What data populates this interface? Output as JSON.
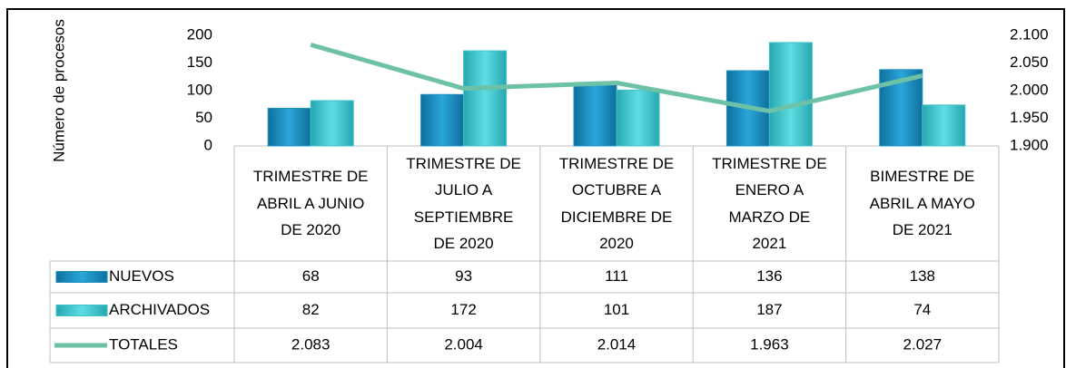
{
  "chart_data": {
    "type": "bar_line_table",
    "y_label": "Número de procesos",
    "categories": [
      "TRIMESTRE DE\nABRIL A JUNIO\nDE 2020",
      "TRIMESTRE DE\nJULIO A\nSEPTIEMBRE\nDE 2020",
      "TRIMESTRE DE\nOCTUBRE A\nDICIEMBRE DE\n2020",
      "TRIMESTRE DE\nENERO A\nMARZO DE\n2021",
      "BIMESTRE DE\nABRIL A MAYO\nDE 2021"
    ],
    "series": [
      {
        "name": "NUEVOS",
        "type": "bar",
        "color": "#1b8fc2",
        "values": [
          68,
          93,
          111,
          136,
          138
        ]
      },
      {
        "name": "ARCHIVADOS",
        "type": "bar",
        "color": "#3ec3cb",
        "values": [
          82,
          172,
          101,
          187,
          74
        ]
      },
      {
        "name": "TOTALES",
        "type": "line",
        "axis": "y2",
        "color": "#6cc1a6",
        "values": [
          2083,
          2004,
          2014,
          1963,
          2027
        ],
        "value_labels": [
          "2.083",
          "2.004",
          "2.014",
          "1.963",
          "2.027"
        ]
      }
    ],
    "ylim": [
      0,
      200
    ],
    "yticks": [
      0,
      50,
      100,
      150,
      200
    ],
    "y2lim": [
      1900,
      2100
    ],
    "y2ticks": [
      {
        "value": 1900,
        "label": "1.900"
      },
      {
        "value": 1950,
        "label": "1.950"
      },
      {
        "value": 2000,
        "label": "2.000"
      },
      {
        "value": 2050,
        "label": "2.050"
      },
      {
        "value": 2100,
        "label": "2.100"
      }
    ]
  }
}
